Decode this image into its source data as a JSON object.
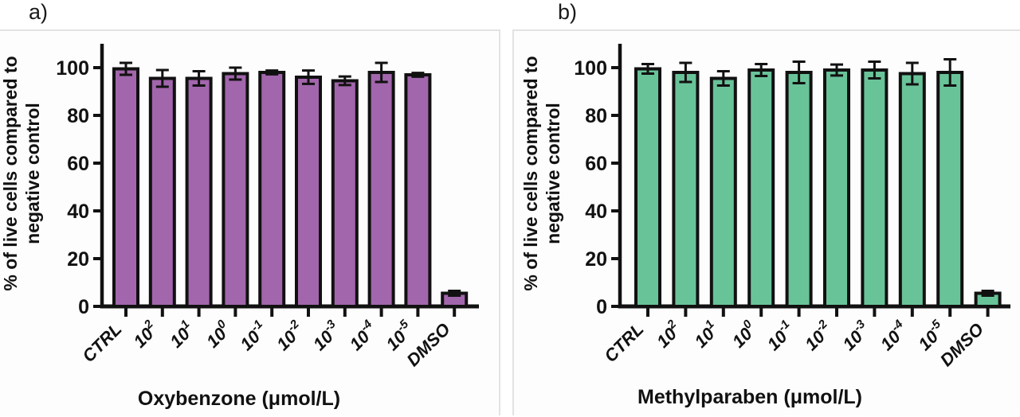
{
  "panel_a": {
    "label": "a)",
    "ylabel_line1": "% of live cells compared to",
    "ylabel_line2": "negative control",
    "xtitle": "Oxybenzone (μmol/L)"
  },
  "panel_b": {
    "label": "b)",
    "ylabel_line1": "% of live cells compared to",
    "ylabel_line2": "negative control",
    "xtitle": "Methylparaben (μmol/L)"
  },
  "chart_data": [
    {
      "type": "bar",
      "title": "",
      "xlabel": "Oxybenzone (μmol/L)",
      "ylabel": "% of live cells compared to negative control",
      "categories": [
        "CTRL",
        "10^2",
        "10^1",
        "10^0",
        "10^-1",
        "10^-2",
        "10^-3",
        "10^-4",
        "10^-5",
        "DMSO"
      ],
      "values": [
        99.5,
        95.5,
        95.5,
        97.5,
        98,
        96,
        94.5,
        98,
        97,
        5.5
      ],
      "errors": [
        2.5,
        3.5,
        3,
        2.5,
        0.8,
        2.8,
        1.8,
        4,
        0.8,
        1
      ],
      "bar_color": "#a266ac",
      "bar_border_color": "#111111",
      "error_color": "#111111",
      "ylim": [
        0,
        110
      ],
      "yticks": [
        0,
        20,
        40,
        60,
        80,
        100
      ],
      "grid": false,
      "legend": "none"
    },
    {
      "type": "bar",
      "title": "",
      "xlabel": "Methylparaben (μmol/L)",
      "ylabel": "% of live cells compared to negative control",
      "categories": [
        "CTRL",
        "10^2",
        "10^1",
        "10^0",
        "10^-1",
        "10^-2",
        "10^-3",
        "10^-4",
        "10^-5",
        "DMSO"
      ],
      "values": [
        99.5,
        98,
        95.5,
        99,
        98,
        99,
        99,
        97.5,
        98,
        5.5
      ],
      "errors": [
        2,
        4,
        3,
        2.5,
        4.5,
        2.3,
        3.5,
        4.5,
        5.5,
        1
      ],
      "bar_color": "#69c399",
      "bar_border_color": "#111111",
      "error_color": "#111111",
      "ylim": [
        0,
        110
      ],
      "yticks": [
        0,
        20,
        40,
        60,
        80,
        100
      ],
      "grid": false,
      "legend": "none"
    }
  ]
}
